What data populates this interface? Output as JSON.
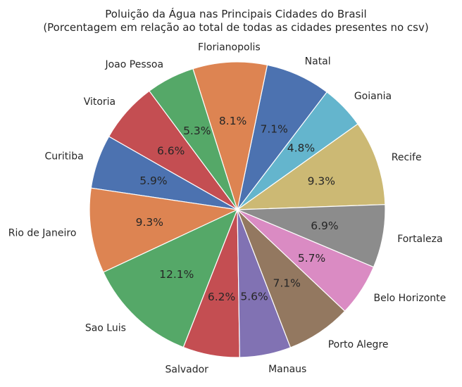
{
  "chart_data": {
    "type": "pie",
    "title": "Poluição da Água nas Principais Cidades do Brasil",
    "subtitle": "(Porcentagem em relação ao total de todas as cidades presentes no csv)",
    "slices": [
      {
        "label": "Recife",
        "value": 9.3,
        "pct_text": "9.3%",
        "color": "#CCB974"
      },
      {
        "label": "Goiania",
        "value": 4.8,
        "pct_text": "4.8%",
        "color": "#64B5CD"
      },
      {
        "label": "Natal",
        "value": 7.1,
        "pct_text": "7.1%",
        "color": "#4C72B0"
      },
      {
        "label": "Florianopolis",
        "value": 8.1,
        "pct_text": "8.1%",
        "color": "#DD8452"
      },
      {
        "label": "Joao Pessoa",
        "value": 5.3,
        "pct_text": "5.3%",
        "color": "#55A868"
      },
      {
        "label": "Vitoria",
        "value": 6.6,
        "pct_text": "6.6%",
        "color": "#C44E52"
      },
      {
        "label": "Curitiba",
        "value": 5.9,
        "pct_text": "5.9%",
        "color": "#4C72B0"
      },
      {
        "label": "Rio de Janeiro",
        "value": 9.3,
        "pct_text": "9.3%",
        "color": "#DD8452"
      },
      {
        "label": "Sao Luis",
        "value": 12.1,
        "pct_text": "12.1%",
        "color": "#55A868"
      },
      {
        "label": "Salvador",
        "value": 6.2,
        "pct_text": "6.2%",
        "color": "#C44E52"
      },
      {
        "label": "Manaus",
        "value": 5.6,
        "pct_text": "5.6%",
        "color": "#8172B3"
      },
      {
        "label": "Porto Alegre",
        "value": 7.1,
        "pct_text": "7.1%",
        "color": "#937860"
      },
      {
        "label": "Belo Horizonte",
        "value": 5.7,
        "pct_text": "5.7%",
        "color": "#DA8BC3"
      },
      {
        "label": "Fortaleza",
        "value": 6.9,
        "pct_text": "6.9%",
        "color": "#8C8C8C"
      }
    ],
    "start_angle_deg": 2,
    "direction": "counterclockwise"
  }
}
